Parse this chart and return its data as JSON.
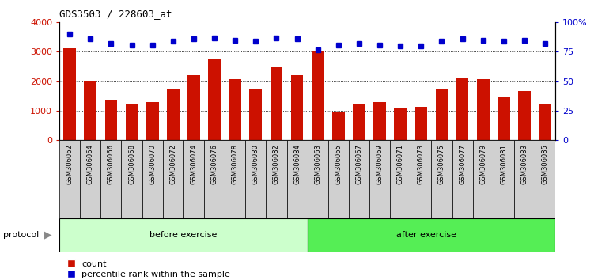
{
  "title": "GDS3503 / 228603_at",
  "samples": [
    "GSM306062",
    "GSM306064",
    "GSM306066",
    "GSM306068",
    "GSM306070",
    "GSM306072",
    "GSM306074",
    "GSM306076",
    "GSM306078",
    "GSM306080",
    "GSM306082",
    "GSM306084",
    "GSM306063",
    "GSM306065",
    "GSM306067",
    "GSM306069",
    "GSM306071",
    "GSM306073",
    "GSM306075",
    "GSM306077",
    "GSM306079",
    "GSM306081",
    "GSM306083",
    "GSM306085"
  ],
  "counts": [
    3120,
    2010,
    1350,
    1200,
    1290,
    1720,
    2200,
    2740,
    2060,
    1760,
    2480,
    2200,
    3020,
    940,
    1220,
    1290,
    1110,
    1130,
    1730,
    2090,
    2080,
    1450,
    1660,
    1220
  ],
  "percentiles": [
    90,
    86,
    82,
    81,
    81,
    84,
    86,
    87,
    85,
    84,
    87,
    86,
    77,
    81,
    82,
    81,
    80,
    80,
    84,
    86,
    85,
    84,
    85,
    82
  ],
  "before_exercise_count": 12,
  "after_exercise_count": 12,
  "bar_color": "#cc1100",
  "percentile_color": "#0000cc",
  "before_bg": "#ccffcc",
  "after_bg": "#55ee55",
  "xtick_bg": "#d0d0d0",
  "ylim_left": [
    0,
    4000
  ],
  "ylim_right": [
    0,
    100
  ],
  "yticks_left": [
    0,
    1000,
    2000,
    3000,
    4000
  ],
  "ytick_labels_left": [
    "0",
    "1000",
    "2000",
    "3000",
    "4000"
  ],
  "yticks_right": [
    0,
    25,
    50,
    75,
    100
  ],
  "ytick_labels_right": [
    "0",
    "25",
    "50",
    "75",
    "100%"
  ],
  "legend_count_label": "count",
  "legend_percentile_label": "percentile rank within the sample",
  "protocol_label": "protocol",
  "before_label": "before exercise",
  "after_label": "after exercise"
}
